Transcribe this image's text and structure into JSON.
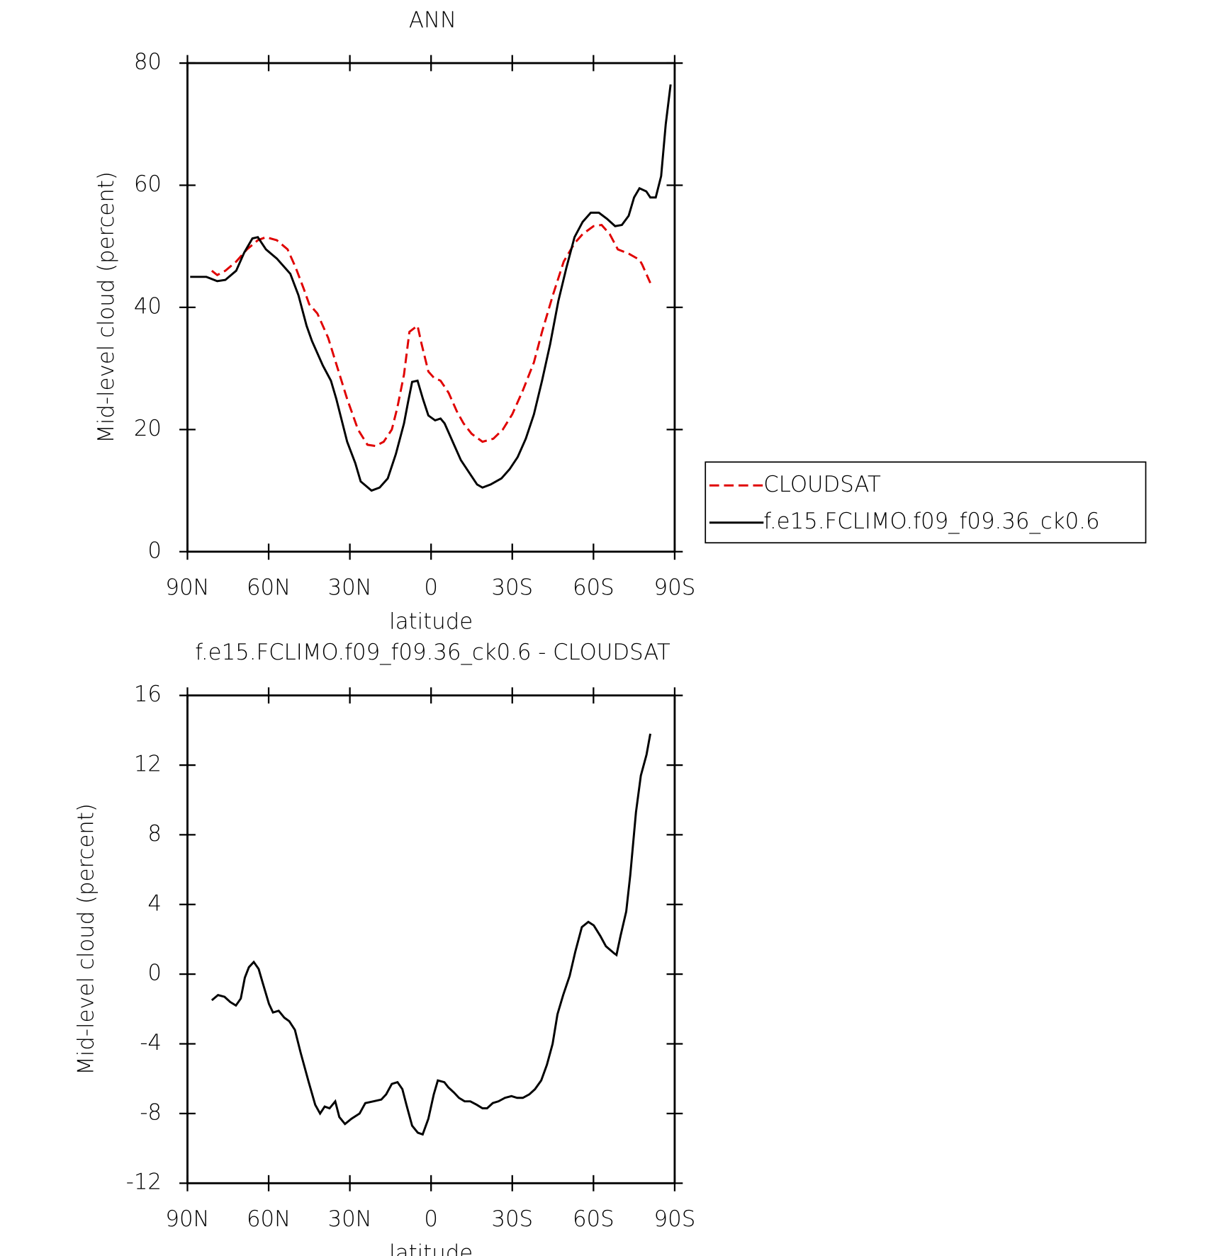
{
  "chart_data": [
    {
      "type": "line",
      "title": "ANN",
      "xlabel": "latitude",
      "ylabel": "Mid-level cloud (percent)",
      "xlim": [
        90,
        -90
      ],
      "ylim": [
        0,
        80
      ],
      "xticks": [
        {
          "value": 90,
          "label": "90N"
        },
        {
          "value": 60,
          "label": "60N"
        },
        {
          "value": 30,
          "label": "30N"
        },
        0,
        {
          "value": -30,
          "label": "30S"
        },
        {
          "value": -60,
          "label": "60S"
        },
        {
          "value": -90,
          "label": "90S"
        }
      ],
      "yticks": [
        0,
        20,
        40,
        60,
        80
      ],
      "legend": "right",
      "series": [
        {
          "name": "CLOUDSAT",
          "color": "#e00000",
          "dash": true,
          "x": [
            81,
            79,
            76,
            72,
            68,
            64,
            61,
            57,
            53,
            50,
            47,
            45,
            42,
            38,
            34.5,
            31,
            27,
            23.5,
            20.5,
            17.5,
            14.5,
            12.5,
            10,
            8,
            5,
            3.5,
            1,
            -1,
            -3.5,
            -6.5,
            -9.5,
            -12,
            -15,
            -19,
            -23,
            -26.5,
            -30,
            -34,
            -38,
            -41,
            -45,
            -49,
            -53,
            -56,
            -60,
            -63,
            -66,
            -69,
            -73,
            -77,
            -78,
            -81
          ],
          "values": [
            46,
            45.3,
            46,
            47.5,
            49.5,
            51,
            51.5,
            51,
            49.5,
            46.5,
            43,
            40.5,
            39,
            35,
            30,
            25,
            20,
            17.5,
            17.3,
            18,
            20,
            23.5,
            29,
            36,
            37,
            34,
            29.5,
            28.5,
            28,
            26,
            23,
            21,
            19.3,
            18,
            18.5,
            20,
            22.5,
            26.5,
            31,
            36,
            42,
            47.5,
            50.5,
            52,
            53.3,
            53.5,
            52,
            49.5,
            48.8,
            47.8,
            47,
            44
          ]
        },
        {
          "name": "f.e15.FCLIMO.f09_f09.36_ck0.6",
          "color": "#000000",
          "dash": false,
          "x": [
            89,
            83,
            79,
            76,
            72,
            69,
            66,
            64,
            61,
            57,
            52,
            49,
            46,
            44,
            40,
            37,
            35,
            31,
            28,
            26,
            22,
            19,
            16,
            13,
            10,
            8.5,
            7,
            5,
            3,
            1,
            -1.5,
            -3.5,
            -5,
            -8,
            -11,
            -14,
            -17,
            -19,
            -22,
            -26,
            -29,
            -32,
            -35,
            -38,
            -41,
            -44,
            -47,
            -50,
            -53,
            -56,
            -59,
            -62,
            -65,
            -68,
            -70.5,
            -73,
            -75,
            -77,
            -79.5,
            -81,
            -83,
            -85,
            -86.7,
            -88.5
          ],
          "values": [
            45,
            45,
            44.3,
            44.5,
            46,
            49,
            51.3,
            51.5,
            49.5,
            48,
            45.5,
            42,
            37,
            34.5,
            30.5,
            28,
            25,
            18,
            14.5,
            11.5,
            10,
            10.5,
            12,
            16,
            21,
            24.5,
            27.8,
            28,
            25,
            22.3,
            21.5,
            21.8,
            21,
            18,
            15,
            13,
            11,
            10.5,
            11,
            12,
            13.5,
            15.5,
            18.5,
            22.5,
            28,
            34,
            41,
            46.5,
            51.5,
            54,
            55.5,
            55.5,
            54.5,
            53.3,
            53.5,
            55,
            58,
            59.5,
            59,
            58,
            58,
            61.5,
            70,
            76.5
          ]
        }
      ]
    },
    {
      "type": "line",
      "title": "f.e15.FCLIMO.f09_f09.36_ck0.6 - CLOUDSAT",
      "xlabel": "latitude",
      "ylabel": "Mid-level cloud (percent)",
      "xlim": [
        90,
        -90
      ],
      "ylim": [
        -12,
        16
      ],
      "xticks": [
        {
          "value": 90,
          "label": "90N"
        },
        {
          "value": 60,
          "label": "60N"
        },
        {
          "value": 30,
          "label": "30N"
        },
        0,
        {
          "value": -30,
          "label": "30S"
        },
        {
          "value": -60,
          "label": "60S"
        },
        {
          "value": -90,
          "label": "90S"
        }
      ],
      "yticks": [
        -12,
        -8,
        -4,
        0,
        4,
        8,
        12,
        16
      ],
      "series": [
        {
          "color": "#000000",
          "dash": false,
          "x": [
            81,
            78.7,
            76.3,
            74.2,
            72.1,
            70.3,
            68.8,
            67.3,
            65.5,
            63.7,
            62.2,
            59.9,
            58.4,
            56.3,
            54.2,
            52.4,
            50.3,
            48.2,
            45.2,
            42.8,
            41,
            39.3,
            37.5,
            35.4,
            33.9,
            31.8,
            29.4,
            26.4,
            24.3,
            21.3,
            18.4,
            16.6,
            14.5,
            12.4,
            10.6,
            9.1,
            7,
            4.9,
            3.1,
            1,
            -1,
            -2.5,
            -4.9,
            -6.4,
            -8.5,
            -10.3,
            -12.4,
            -14.5,
            -16.9,
            -19,
            -20.7,
            -22.8,
            -24.9,
            -27.3,
            -29.7,
            -31.8,
            -33.9,
            -36.3,
            -38.4,
            -40.7,
            -42.8,
            -44.9,
            -46.7,
            -48.8,
            -51.2,
            -53.3,
            -55.7,
            -58.1,
            -60.1,
            -62.5,
            -64.6,
            -67.6,
            -68.5,
            -70,
            -72.1,
            -73.6,
            -75.7,
            -77.5,
            -79.6,
            -81
          ],
          "values": [
            -1.5,
            -1.2,
            -1.3,
            -1.6,
            -1.8,
            -1.4,
            -0.2,
            0.4,
            0.7,
            0.3,
            -0.5,
            -1.7,
            -2.2,
            -2.1,
            -2.5,
            -2.7,
            -3.2,
            -4.5,
            -6.2,
            -7.5,
            -8,
            -7.6,
            -7.7,
            -7.3,
            -8.2,
            -8.6,
            -8.3,
            -8,
            -7.4,
            -7.3,
            -7.2,
            -6.9,
            -6.3,
            -6.2,
            -6.6,
            -7.5,
            -8.7,
            -9.1,
            -9.2,
            -8.3,
            -6.9,
            -6.1,
            -6.2,
            -6.5,
            -6.8,
            -7.1,
            -7.3,
            -7.3,
            -7.5,
            -7.7,
            -7.7,
            -7.4,
            -7.3,
            -7.1,
            -7,
            -7.1,
            -7.1,
            -6.9,
            -6.6,
            -6.1,
            -5.2,
            -4,
            -2.3,
            -1.2,
            -0.1,
            1.3,
            2.7,
            3,
            2.8,
            2.2,
            1.6,
            1.2,
            1.1,
            2.2,
            3.6,
            5.7,
            9.3,
            11.4,
            12.6,
            13.8
          ]
        }
      ]
    }
  ]
}
